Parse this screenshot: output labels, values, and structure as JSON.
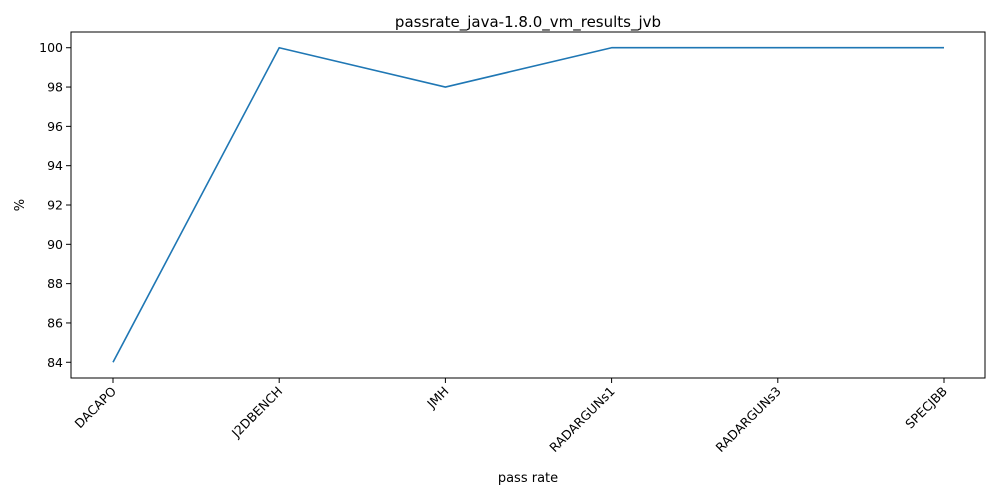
{
  "chart_data": {
    "type": "line",
    "title": "passrate_java-1.8.0_vm_results_jvb",
    "xlabel": "pass rate",
    "ylabel": "%",
    "categories": [
      "DACAPO",
      "J2DBENCH",
      "JMH",
      "RADARGUNs1",
      "RADARGUNs3",
      "SPECJBB"
    ],
    "series": [
      {
        "values": [
          84,
          100,
          98,
          100,
          100,
          100
        ],
        "color": "#1f77b4"
      }
    ],
    "ylim": [
      83.2,
      100.8
    ],
    "yticks": [
      84,
      86,
      88,
      90,
      92,
      94,
      96,
      98,
      100
    ],
    "grid": false,
    "legend": "none"
  }
}
